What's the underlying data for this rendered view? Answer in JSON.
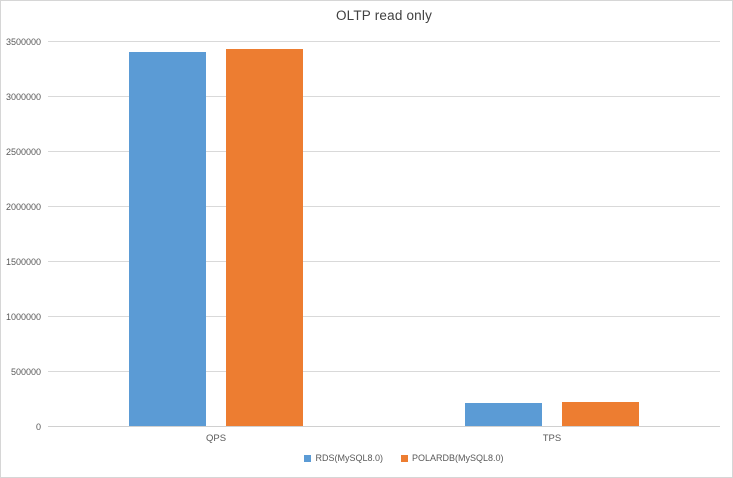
{
  "chart_data": {
    "type": "bar",
    "title": "OLTP read only",
    "categories": [
      "QPS",
      "TPS"
    ],
    "series": [
      {
        "name": "RDS(MySQL8.0)",
        "color": "#5b9bd5",
        "values": [
          3400000,
          212000
        ]
      },
      {
        "name": "POLARDB(MySQL8.0)",
        "color": "#ed7d31",
        "values": [
          3430000,
          214000
        ]
      }
    ],
    "xlabel": "",
    "ylabel": "",
    "ylim": [
      0,
      3500000
    ],
    "yticks": [
      0,
      500000,
      1000000,
      1500000,
      2000000,
      2500000,
      3000000,
      3500000
    ],
    "grid": true,
    "legend_position": "bottom",
    "background_color": "#ffffff",
    "gridline_color": "#d9d9d9",
    "text_color": "#595959",
    "title_color": "#404040"
  }
}
